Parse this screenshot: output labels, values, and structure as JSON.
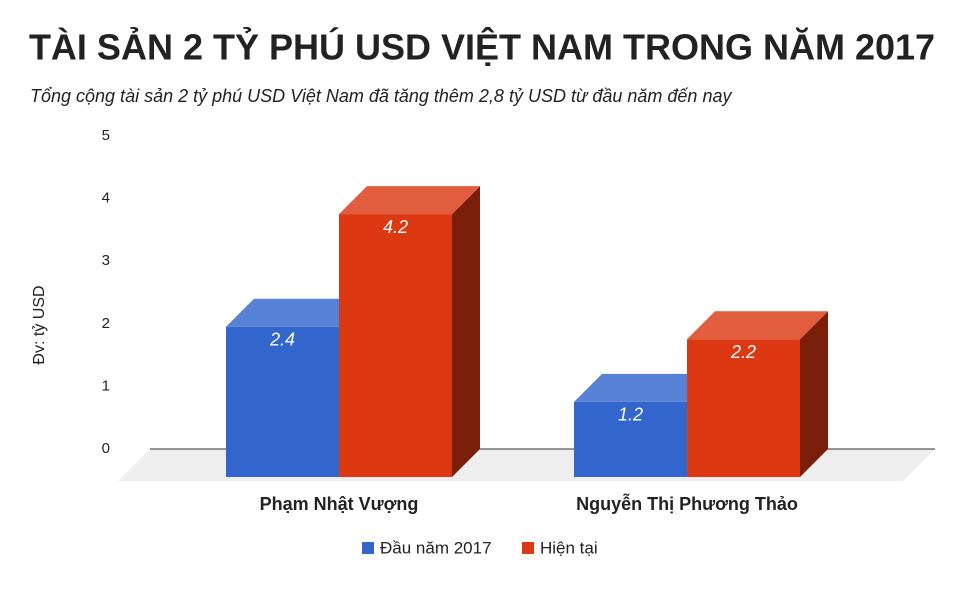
{
  "chart_data": {
    "type": "bar3d",
    "title": "TÀI SẢN 2 TỶ PHÚ USD VIỆT NAM TRONG NĂM 2017",
    "subtitle": "Tổng cộng tài sản 2 tỷ phú USD Việt Nam đã tăng thêm 2,8 tỷ USD từ đầu năm đến nay",
    "y_label": "Đv: tỷ USD",
    "categories": [
      "Phạm Nhật Vượng",
      "Nguyễn Thị Phương Thảo"
    ],
    "series": [
      {
        "name": "Đầu năm 2017",
        "color": "#3366cc",
        "values": [
          2.4,
          1.2
        ]
      },
      {
        "name": "Hiện tại",
        "color": "#dc3912",
        "values": [
          4.2,
          2.2
        ]
      }
    ],
    "ylim": [
      0,
      5
    ],
    "yticks": [
      0,
      1,
      2,
      3,
      4,
      5
    ],
    "grid": false,
    "legend": "bottom"
  }
}
